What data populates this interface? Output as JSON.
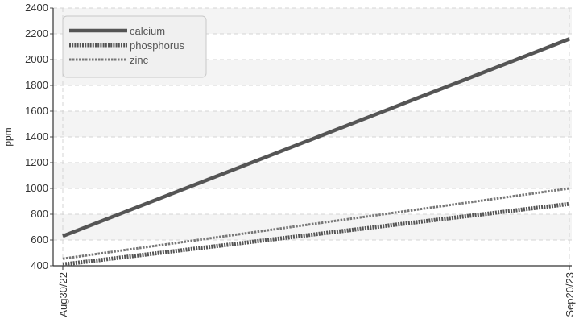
{
  "chart_data": {
    "type": "line",
    "title": "",
    "xlabel": "",
    "ylabel": "ppm",
    "x": [
      "Aug30/22",
      "Sep20/23"
    ],
    "ylim": [
      400,
      2400
    ],
    "yticks": [
      400,
      600,
      800,
      1000,
      1200,
      1400,
      1600,
      1800,
      2000,
      2200,
      2400
    ],
    "grid": true,
    "legend_position": "top-left",
    "series": [
      {
        "name": "calcium",
        "values": [
          630,
          2160
        ],
        "color": "#555555",
        "style": "solid"
      },
      {
        "name": "phosphorus",
        "values": [
          410,
          880
        ],
        "color": "#555555",
        "style": "dotted"
      },
      {
        "name": "zinc",
        "values": [
          455,
          1000
        ],
        "color": "#777777",
        "style": "dashed"
      }
    ]
  }
}
